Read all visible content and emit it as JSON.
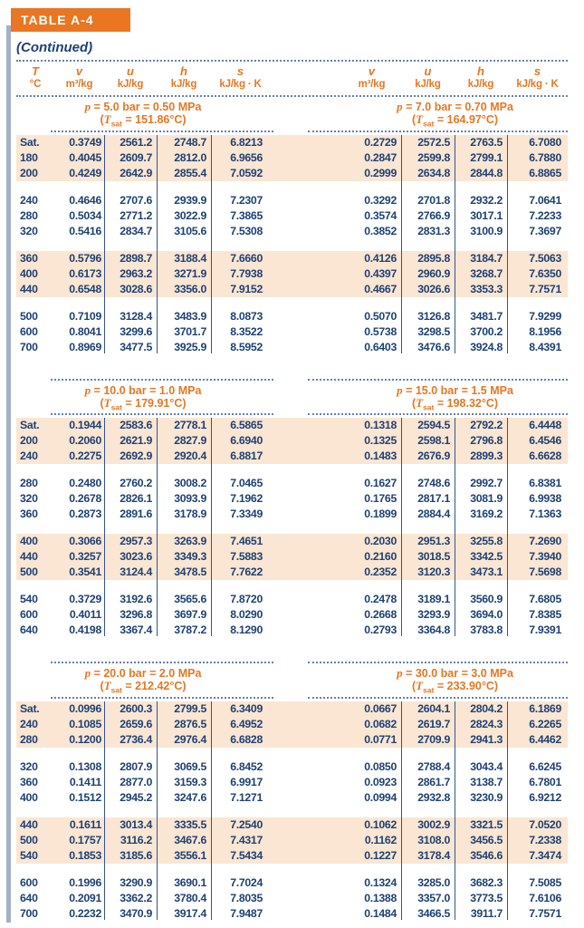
{
  "tab_title": "TABLE A-4",
  "continued_label": "(Continued)",
  "colors": {
    "accent_orange": "#E87622",
    "navy_text": "#1E4175",
    "row_shade": "#FAE6D2",
    "accent_bar": "#A2B1C6",
    "dotted_rule": "#6480B0"
  },
  "icons": {},
  "column_headers": {
    "t": {
      "symbol": "T",
      "unit": "°C"
    },
    "props": [
      {
        "symbol": "v",
        "unit": "m³/kg"
      },
      {
        "symbol": "u",
        "unit": "kJ/kg"
      },
      {
        "symbol": "h",
        "unit": "kJ/kg"
      },
      {
        "symbol": "s",
        "unit": "kJ/kg · K"
      }
    ]
  },
  "symbols": {
    "pressure": "p",
    "tsat_T": "T",
    "tsat_sub": "sat"
  },
  "sections": [
    {
      "left": {
        "pressure_eq": "= 5.0 bar = 0.50 MPa",
        "tsat_eq": "= 151.86°C"
      },
      "right": {
        "pressure_eq": "= 7.0 bar = 0.70 MPa",
        "tsat_eq": "= 164.97°C"
      },
      "groups": [
        {
          "shaded": true,
          "rows": [
            {
              "t": "Sat.",
              "left": [
                "0.3749",
                "2561.2",
                "2748.7",
                "6.8213"
              ],
              "right": [
                "0.2729",
                "2572.5",
                "2763.5",
                "6.7080"
              ]
            },
            {
              "t": "180",
              "left": [
                "0.4045",
                "2609.7",
                "2812.0",
                "6.9656"
              ],
              "right": [
                "0.2847",
                "2599.8",
                "2799.1",
                "6.7880"
              ]
            },
            {
              "t": "200",
              "left": [
                "0.4249",
                "2642.9",
                "2855.4",
                "7.0592"
              ],
              "right": [
                "0.2999",
                "2634.8",
                "2844.8",
                "6.8865"
              ]
            }
          ]
        },
        {
          "shaded": false,
          "rows": [
            {
              "t": "240",
              "left": [
                "0.4646",
                "2707.6",
                "2939.9",
                "7.2307"
              ],
              "right": [
                "0.3292",
                "2701.8",
                "2932.2",
                "7.0641"
              ]
            },
            {
              "t": "280",
              "left": [
                "0.5034",
                "2771.2",
                "3022.9",
                "7.3865"
              ],
              "right": [
                "0.3574",
                "2766.9",
                "3017.1",
                "7.2233"
              ]
            },
            {
              "t": "320",
              "left": [
                "0.5416",
                "2834.7",
                "3105.6",
                "7.5308"
              ],
              "right": [
                "0.3852",
                "2831.3",
                "3100.9",
                "7.3697"
              ]
            }
          ]
        },
        {
          "shaded": true,
          "rows": [
            {
              "t": "360",
              "left": [
                "0.5796",
                "2898.7",
                "3188.4",
                "7.6660"
              ],
              "right": [
                "0.4126",
                "2895.8",
                "3184.7",
                "7.5063"
              ]
            },
            {
              "t": "400",
              "left": [
                "0.6173",
                "2963.2",
                "3271.9",
                "7.7938"
              ],
              "right": [
                "0.4397",
                "2960.9",
                "3268.7",
                "7.6350"
              ]
            },
            {
              "t": "440",
              "left": [
                "0.6548",
                "3028.6",
                "3356.0",
                "7.9152"
              ],
              "right": [
                "0.4667",
                "3026.6",
                "3353.3",
                "7.7571"
              ]
            }
          ]
        },
        {
          "shaded": false,
          "rows": [
            {
              "t": "500",
              "left": [
                "0.7109",
                "3128.4",
                "3483.9",
                "8.0873"
              ],
              "right": [
                "0.5070",
                "3126.8",
                "3481.7",
                "7.9299"
              ]
            },
            {
              "t": "600",
              "left": [
                "0.8041",
                "3299.6",
                "3701.7",
                "8.3522"
              ],
              "right": [
                "0.5738",
                "3298.5",
                "3700.2",
                "8.1956"
              ]
            },
            {
              "t": "700",
              "left": [
                "0.8969",
                "3477.5",
                "3925.9",
                "8.5952"
              ],
              "right": [
                "0.6403",
                "3476.6",
                "3924.8",
                "8.4391"
              ]
            }
          ]
        }
      ]
    },
    {
      "left": {
        "pressure_eq": "= 10.0 bar = 1.0 MPa",
        "tsat_eq": "= 179.91°C"
      },
      "right": {
        "pressure_eq": "= 15.0 bar = 1.5 MPa",
        "tsat_eq": "= 198.32°C"
      },
      "groups": [
        {
          "shaded": true,
          "rows": [
            {
              "t": "Sat.",
              "left": [
                "0.1944",
                "2583.6",
                "2778.1",
                "6.5865"
              ],
              "right": [
                "0.1318",
                "2594.5",
                "2792.2",
                "6.4448"
              ]
            },
            {
              "t": "200",
              "left": [
                "0.2060",
                "2621.9",
                "2827.9",
                "6.6940"
              ],
              "right": [
                "0.1325",
                "2598.1",
                "2796.8",
                "6.4546"
              ]
            },
            {
              "t": "240",
              "left": [
                "0.2275",
                "2692.9",
                "2920.4",
                "6.8817"
              ],
              "right": [
                "0.1483",
                "2676.9",
                "2899.3",
                "6.6628"
              ]
            }
          ]
        },
        {
          "shaded": false,
          "rows": [
            {
              "t": "280",
              "left": [
                "0.2480",
                "2760.2",
                "3008.2",
                "7.0465"
              ],
              "right": [
                "0.1627",
                "2748.6",
                "2992.7",
                "6.8381"
              ]
            },
            {
              "t": "320",
              "left": [
                "0.2678",
                "2826.1",
                "3093.9",
                "7.1962"
              ],
              "right": [
                "0.1765",
                "2817.1",
                "3081.9",
                "6.9938"
              ]
            },
            {
              "t": "360",
              "left": [
                "0.2873",
                "2891.6",
                "3178.9",
                "7.3349"
              ],
              "right": [
                "0.1899",
                "2884.4",
                "3169.2",
                "7.1363"
              ]
            }
          ]
        },
        {
          "shaded": true,
          "rows": [
            {
              "t": "400",
              "left": [
                "0.3066",
                "2957.3",
                "3263.9",
                "7.4651"
              ],
              "right": [
                "0.2030",
                "2951.3",
                "3255.8",
                "7.2690"
              ]
            },
            {
              "t": "440",
              "left": [
                "0.3257",
                "3023.6",
                "3349.3",
                "7.5883"
              ],
              "right": [
                "0.2160",
                "3018.5",
                "3342.5",
                "7.3940"
              ]
            },
            {
              "t": "500",
              "left": [
                "0.3541",
                "3124.4",
                "3478.5",
                "7.7622"
              ],
              "right": [
                "0.2352",
                "3120.3",
                "3473.1",
                "7.5698"
              ]
            }
          ]
        },
        {
          "shaded": false,
          "rows": [
            {
              "t": "540",
              "left": [
                "0.3729",
                "3192.6",
                "3565.6",
                "7.8720"
              ],
              "right": [
                "0.2478",
                "3189.1",
                "3560.9",
                "7.6805"
              ]
            },
            {
              "t": "600",
              "left": [
                "0.4011",
                "3296.8",
                "3697.9",
                "8.0290"
              ],
              "right": [
                "0.2668",
                "3293.9",
                "3694.0",
                "7.8385"
              ]
            },
            {
              "t": "640",
              "left": [
                "0.4198",
                "3367.4",
                "3787.2",
                "8.1290"
              ],
              "right": [
                "0.2793",
                "3364.8",
                "3783.8",
                "7.9391"
              ]
            }
          ]
        }
      ]
    },
    {
      "left": {
        "pressure_eq": "= 20.0 bar = 2.0 MPa",
        "tsat_eq": "= 212.42°C"
      },
      "right": {
        "pressure_eq": "= 30.0 bar = 3.0 MPa",
        "tsat_eq": "= 233.90°C"
      },
      "groups": [
        {
          "shaded": true,
          "rows": [
            {
              "t": "Sat.",
              "left": [
                "0.0996",
                "2600.3",
                "2799.5",
                "6.3409"
              ],
              "right": [
                "0.0667",
                "2604.1",
                "2804.2",
                "6.1869"
              ]
            },
            {
              "t": "240",
              "left": [
                "0.1085",
                "2659.6",
                "2876.5",
                "6.4952"
              ],
              "right": [
                "0.0682",
                "2619.7",
                "2824.3",
                "6.2265"
              ]
            },
            {
              "t": "280",
              "left": [
                "0.1200",
                "2736.4",
                "2976.4",
                "6.6828"
              ],
              "right": [
                "0.0771",
                "2709.9",
                "2941.3",
                "6.4462"
              ]
            }
          ]
        },
        {
          "shaded": false,
          "rows": [
            {
              "t": "320",
              "left": [
                "0.1308",
                "2807.9",
                "3069.5",
                "6.8452"
              ],
              "right": [
                "0.0850",
                "2788.4",
                "3043.4",
                "6.6245"
              ]
            },
            {
              "t": "360",
              "left": [
                "0.1411",
                "2877.0",
                "3159.3",
                "6.9917"
              ],
              "right": [
                "0.0923",
                "2861.7",
                "3138.7",
                "6.7801"
              ]
            },
            {
              "t": "400",
              "left": [
                "0.1512",
                "2945.2",
                "3247.6",
                "7.1271"
              ],
              "right": [
                "0.0994",
                "2932.8",
                "3230.9",
                "6.9212"
              ]
            }
          ]
        },
        {
          "shaded": true,
          "rows": [
            {
              "t": "440",
              "left": [
                "0.1611",
                "3013.4",
                "3335.5",
                "7.2540"
              ],
              "right": [
                "0.1062",
                "3002.9",
                "3321.5",
                "7.0520"
              ]
            },
            {
              "t": "500",
              "left": [
                "0.1757",
                "3116.2",
                "3467.6",
                "7.4317"
              ],
              "right": [
                "0.1162",
                "3108.0",
                "3456.5",
                "7.2338"
              ]
            },
            {
              "t": "540",
              "left": [
                "0.1853",
                "3185.6",
                "3556.1",
                "7.5434"
              ],
              "right": [
                "0.1227",
                "3178.4",
                "3546.6",
                "7.3474"
              ]
            }
          ]
        },
        {
          "shaded": false,
          "rows": [
            {
              "t": "600",
              "left": [
                "0.1996",
                "3290.9",
                "3690.1",
                "7.7024"
              ],
              "right": [
                "0.1324",
                "3285.0",
                "3682.3",
                "7.5085"
              ]
            },
            {
              "t": "640",
              "left": [
                "0.2091",
                "3362.2",
                "3780.4",
                "7.8035"
              ],
              "right": [
                "0.1388",
                "3357.0",
                "3773.5",
                "7.6106"
              ]
            },
            {
              "t": "700",
              "left": [
                "0.2232",
                "3470.9",
                "3917.4",
                "7.9487"
              ],
              "right": [
                "0.1484",
                "3466.5",
                "3911.7",
                "7.7571"
              ]
            }
          ]
        }
      ]
    }
  ]
}
